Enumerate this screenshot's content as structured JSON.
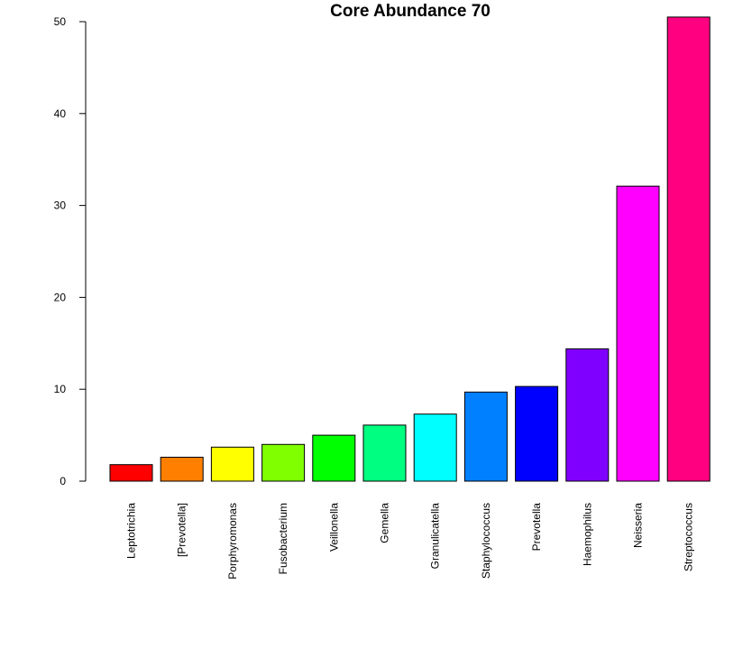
{
  "chart_data": {
    "type": "bar",
    "title": "Core Abundance 70",
    "xlabel": "",
    "ylabel": "",
    "ylim": [
      0,
      50
    ],
    "yticks": [
      0,
      10,
      20,
      30,
      40,
      50
    ],
    "categories": [
      "Leptotrichia",
      "[Prevotella]",
      "Porphyromonas",
      "Fusobacterium",
      "Veillonella",
      "Gemella",
      "Granulicatella",
      "Staphylococcus",
      "Prevotella",
      "Haemophilus",
      "Neisseria",
      "Streptococcus"
    ],
    "values": [
      1.8,
      2.6,
      3.7,
      4.0,
      5.0,
      6.1,
      7.3,
      9.7,
      10.3,
      14.4,
      32.1,
      50.5
    ],
    "colors": [
      "#FF0000",
      "#FF8000",
      "#FFFF00",
      "#80FF00",
      "#00FF00",
      "#00FF80",
      "#00FFFF",
      "#0080FF",
      "#0000FF",
      "#8000FF",
      "#FF00FF",
      "#FF0080"
    ],
    "grid": false,
    "legend": "none"
  }
}
